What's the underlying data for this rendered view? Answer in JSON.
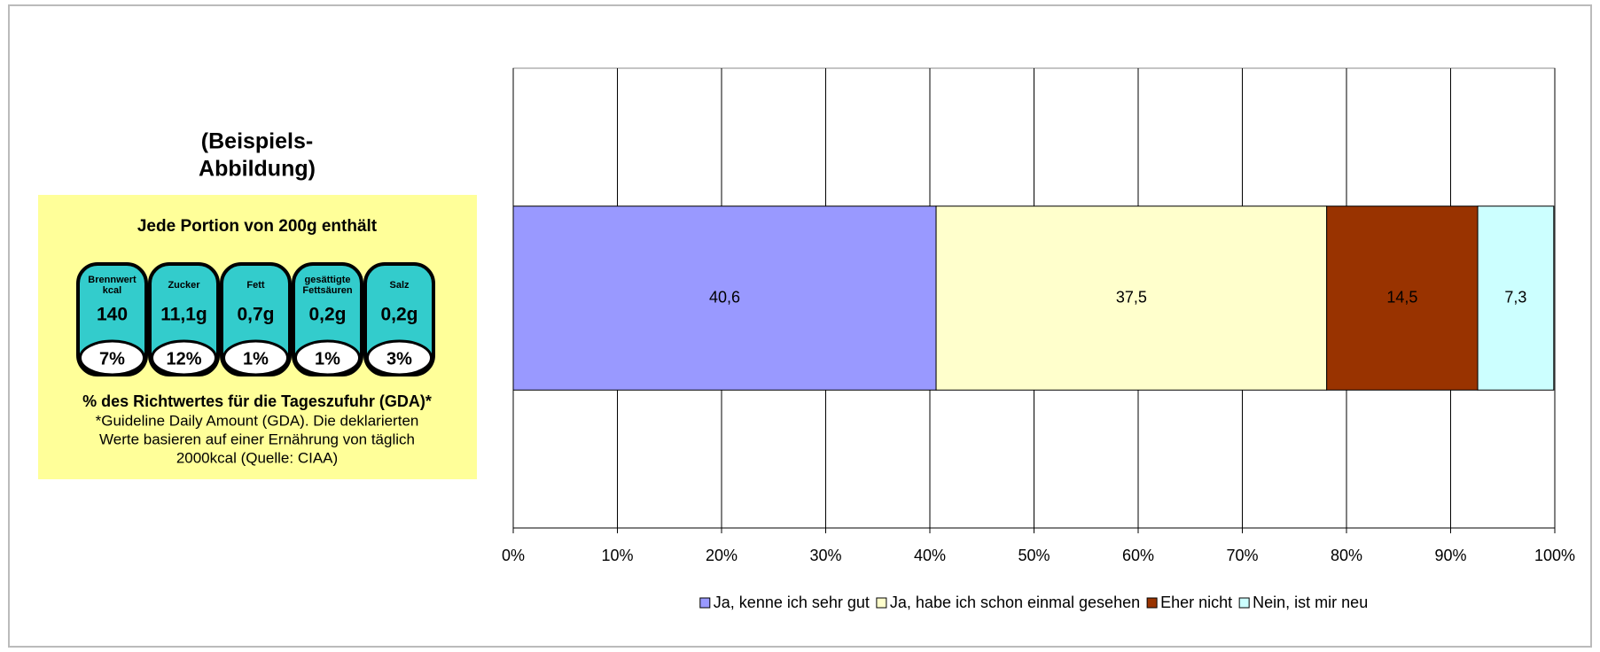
{
  "chart_data": {
    "type": "stacked_bar_horizontal",
    "categories": [
      null
    ],
    "series": [
      {
        "name": "Ja, kenne ich sehr gut",
        "color": "#9999ff",
        "values": [
          40.6
        ],
        "value_labels": [
          "40,6"
        ]
      },
      {
        "name": "Ja, habe ich schon einmal gesehen",
        "color": "#ffffcc",
        "values": [
          37.5
        ],
        "value_labels": [
          "37,5"
        ]
      },
      {
        "name": "Eher nicht",
        "color": "#993300",
        "values": [
          14.5
        ],
        "value_labels": [
          "14,5"
        ]
      },
      {
        "name": "Nein, ist mir neu",
        "color": "#ccffff",
        "values": [
          7.3
        ],
        "value_labels": [
          "7,3"
        ]
      }
    ],
    "xlim": [
      0,
      100
    ],
    "xticks": [
      {
        "value": 0,
        "label": "0%"
      },
      {
        "value": 10,
        "label": "10%"
      },
      {
        "value": 20,
        "label": "20%"
      },
      {
        "value": 30,
        "label": "30%"
      },
      {
        "value": 40,
        "label": "40%"
      },
      {
        "value": 50,
        "label": "50%"
      },
      {
        "value": 60,
        "label": "60%"
      },
      {
        "value": 70,
        "label": "70%"
      },
      {
        "value": 80,
        "label": "80%"
      },
      {
        "value": 90,
        "label": "90%"
      },
      {
        "value": 100,
        "label": "100%"
      }
    ],
    "grid": true,
    "legend": "bottom"
  },
  "illustration": {
    "caption_lines": [
      "(Beispiels-",
      "Abbildung)"
    ],
    "heading": "Jede Portion von 200g enthält",
    "nutrients": [
      {
        "name_lines": [
          "Brennwert",
          "kcal"
        ],
        "amount": "140",
        "percent": "7%"
      },
      {
        "name_lines": [
          "Zucker"
        ],
        "amount": "11,1g",
        "percent": "12%"
      },
      {
        "name_lines": [
          "Fett"
        ],
        "amount": "0,7g",
        "percent": "1%"
      },
      {
        "name_lines": [
          "gesättigte",
          "Fettsäuren"
        ],
        "amount": "0,2g",
        "percent": "1%"
      },
      {
        "name_lines": [
          "Salz"
        ],
        "amount": "0,2g",
        "percent": "3%"
      }
    ],
    "footer_bold": "% des Richtwertes für die Tageszufuhr (GDA)*",
    "footer_lines": [
      "*Guideline Daily Amount (GDA). Die deklarierten",
      "Werte basieren auf einer Ernährung von täglich",
      "2000kcal (Quelle: CIAA)"
    ]
  }
}
